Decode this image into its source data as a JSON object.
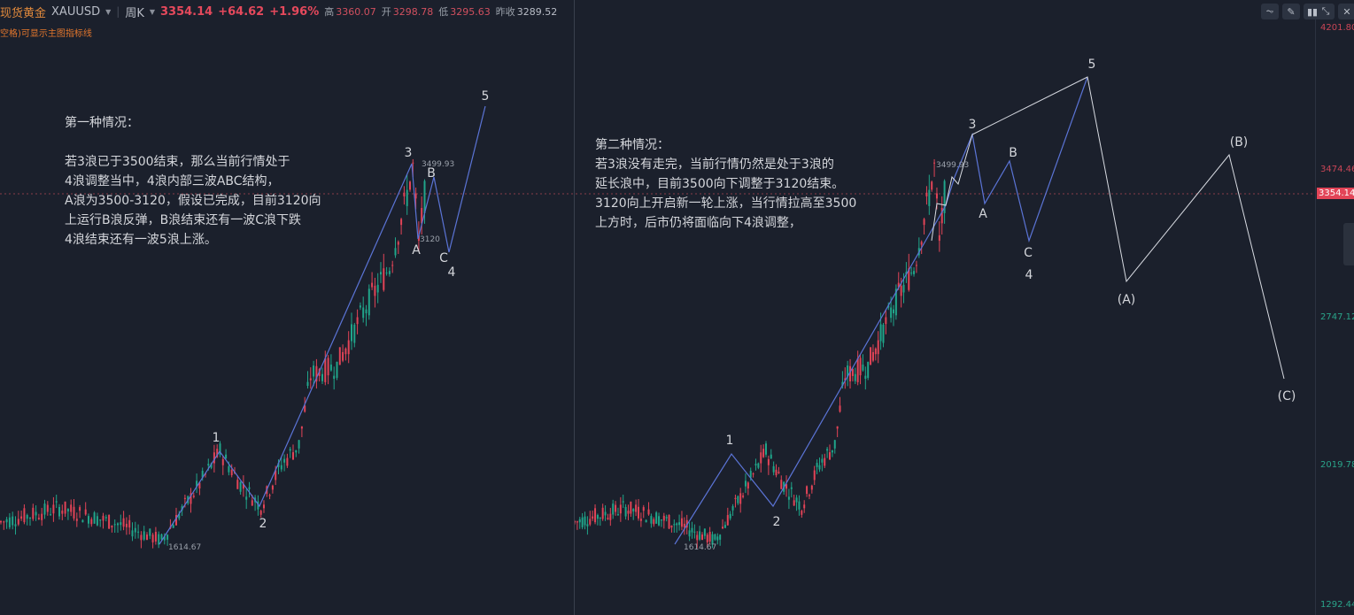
{
  "header": {
    "name": "现货黄金",
    "symbol": "XAUUSD",
    "period": "周K",
    "price": "3354.14",
    "change": "+64.62",
    "change_pct": "+1.96%",
    "high_label": "高",
    "high": "3360.07",
    "open_label": "开",
    "open": "3298.78",
    "low_label": "低",
    "low": "3295.63",
    "prev_label": "昨收",
    "prev": "3289.52"
  },
  "hint": "空格)可显示主图指标线",
  "toolbar": {
    "icons": [
      "indicator-icon",
      "draw-icon",
      "candle-type-icon",
      "collapse-icon",
      "close-icon"
    ]
  },
  "axis": {
    "labels": [
      "4201.80",
      "3474.46",
      "3354.14",
      "2747.12",
      "2019.78",
      "1292.44"
    ]
  },
  "colors": {
    "up": "#e24457",
    "down": "#20a58a",
    "wave_line": "#5b74d6",
    "projection": "#d8dbe2"
  },
  "left": {
    "title": "第一种情况：",
    "body": "若3浪已于3500结束，那么当前行情处于\n4浪调整当中，4浪内部三波ABC结构，\nA浪为3500-3120，假设已完成，目前3120向\n上运行B浪反弹，B浪结束还有一波C浪下跌\n4浪结束还有一波5浪上涨。",
    "waves": [
      "1",
      "2",
      "3",
      "A",
      "B",
      "C",
      "4",
      "5"
    ],
    "low_mark": "1614.67",
    "high_mark": "3499.93",
    "a_mark": "3120"
  },
  "right": {
    "title": "第二种情况：",
    "body": "若3浪没有走完，当前行情仍然是处于3浪的\n延长浪中，目前3500向下调整于3120结束。\n3120向上开启新一轮上涨，当行情拉高至3500\n上方时，后市仍将面临向下4浪调整，",
    "waves": [
      "1",
      "2",
      "3",
      "A",
      "B",
      "C",
      "4",
      "5",
      "(A)",
      "(B)",
      "(C)"
    ],
    "low_mark": "1614.67",
    "high_mark": "3499.93"
  },
  "chart_data": {
    "type": "candlestick",
    "price_path": [
      [
        0,
        1708
      ],
      [
        20,
        1780
      ],
      [
        40,
        1700
      ],
      [
        55,
        1615
      ],
      [
        68,
        1900
      ],
      [
        75,
        2066
      ],
      [
        82,
        1900
      ],
      [
        89,
        1789
      ],
      [
        96,
        2000
      ],
      [
        102,
        2100
      ],
      [
        106,
        2450
      ],
      [
        115,
        2500
      ],
      [
        125,
        2800
      ],
      [
        133,
        3000
      ],
      [
        138,
        3300
      ],
      [
        141,
        3500
      ],
      [
        143,
        3120
      ],
      [
        145,
        3354
      ]
    ],
    "ylim": [
      1292.44,
      4201.8
    ]
  }
}
